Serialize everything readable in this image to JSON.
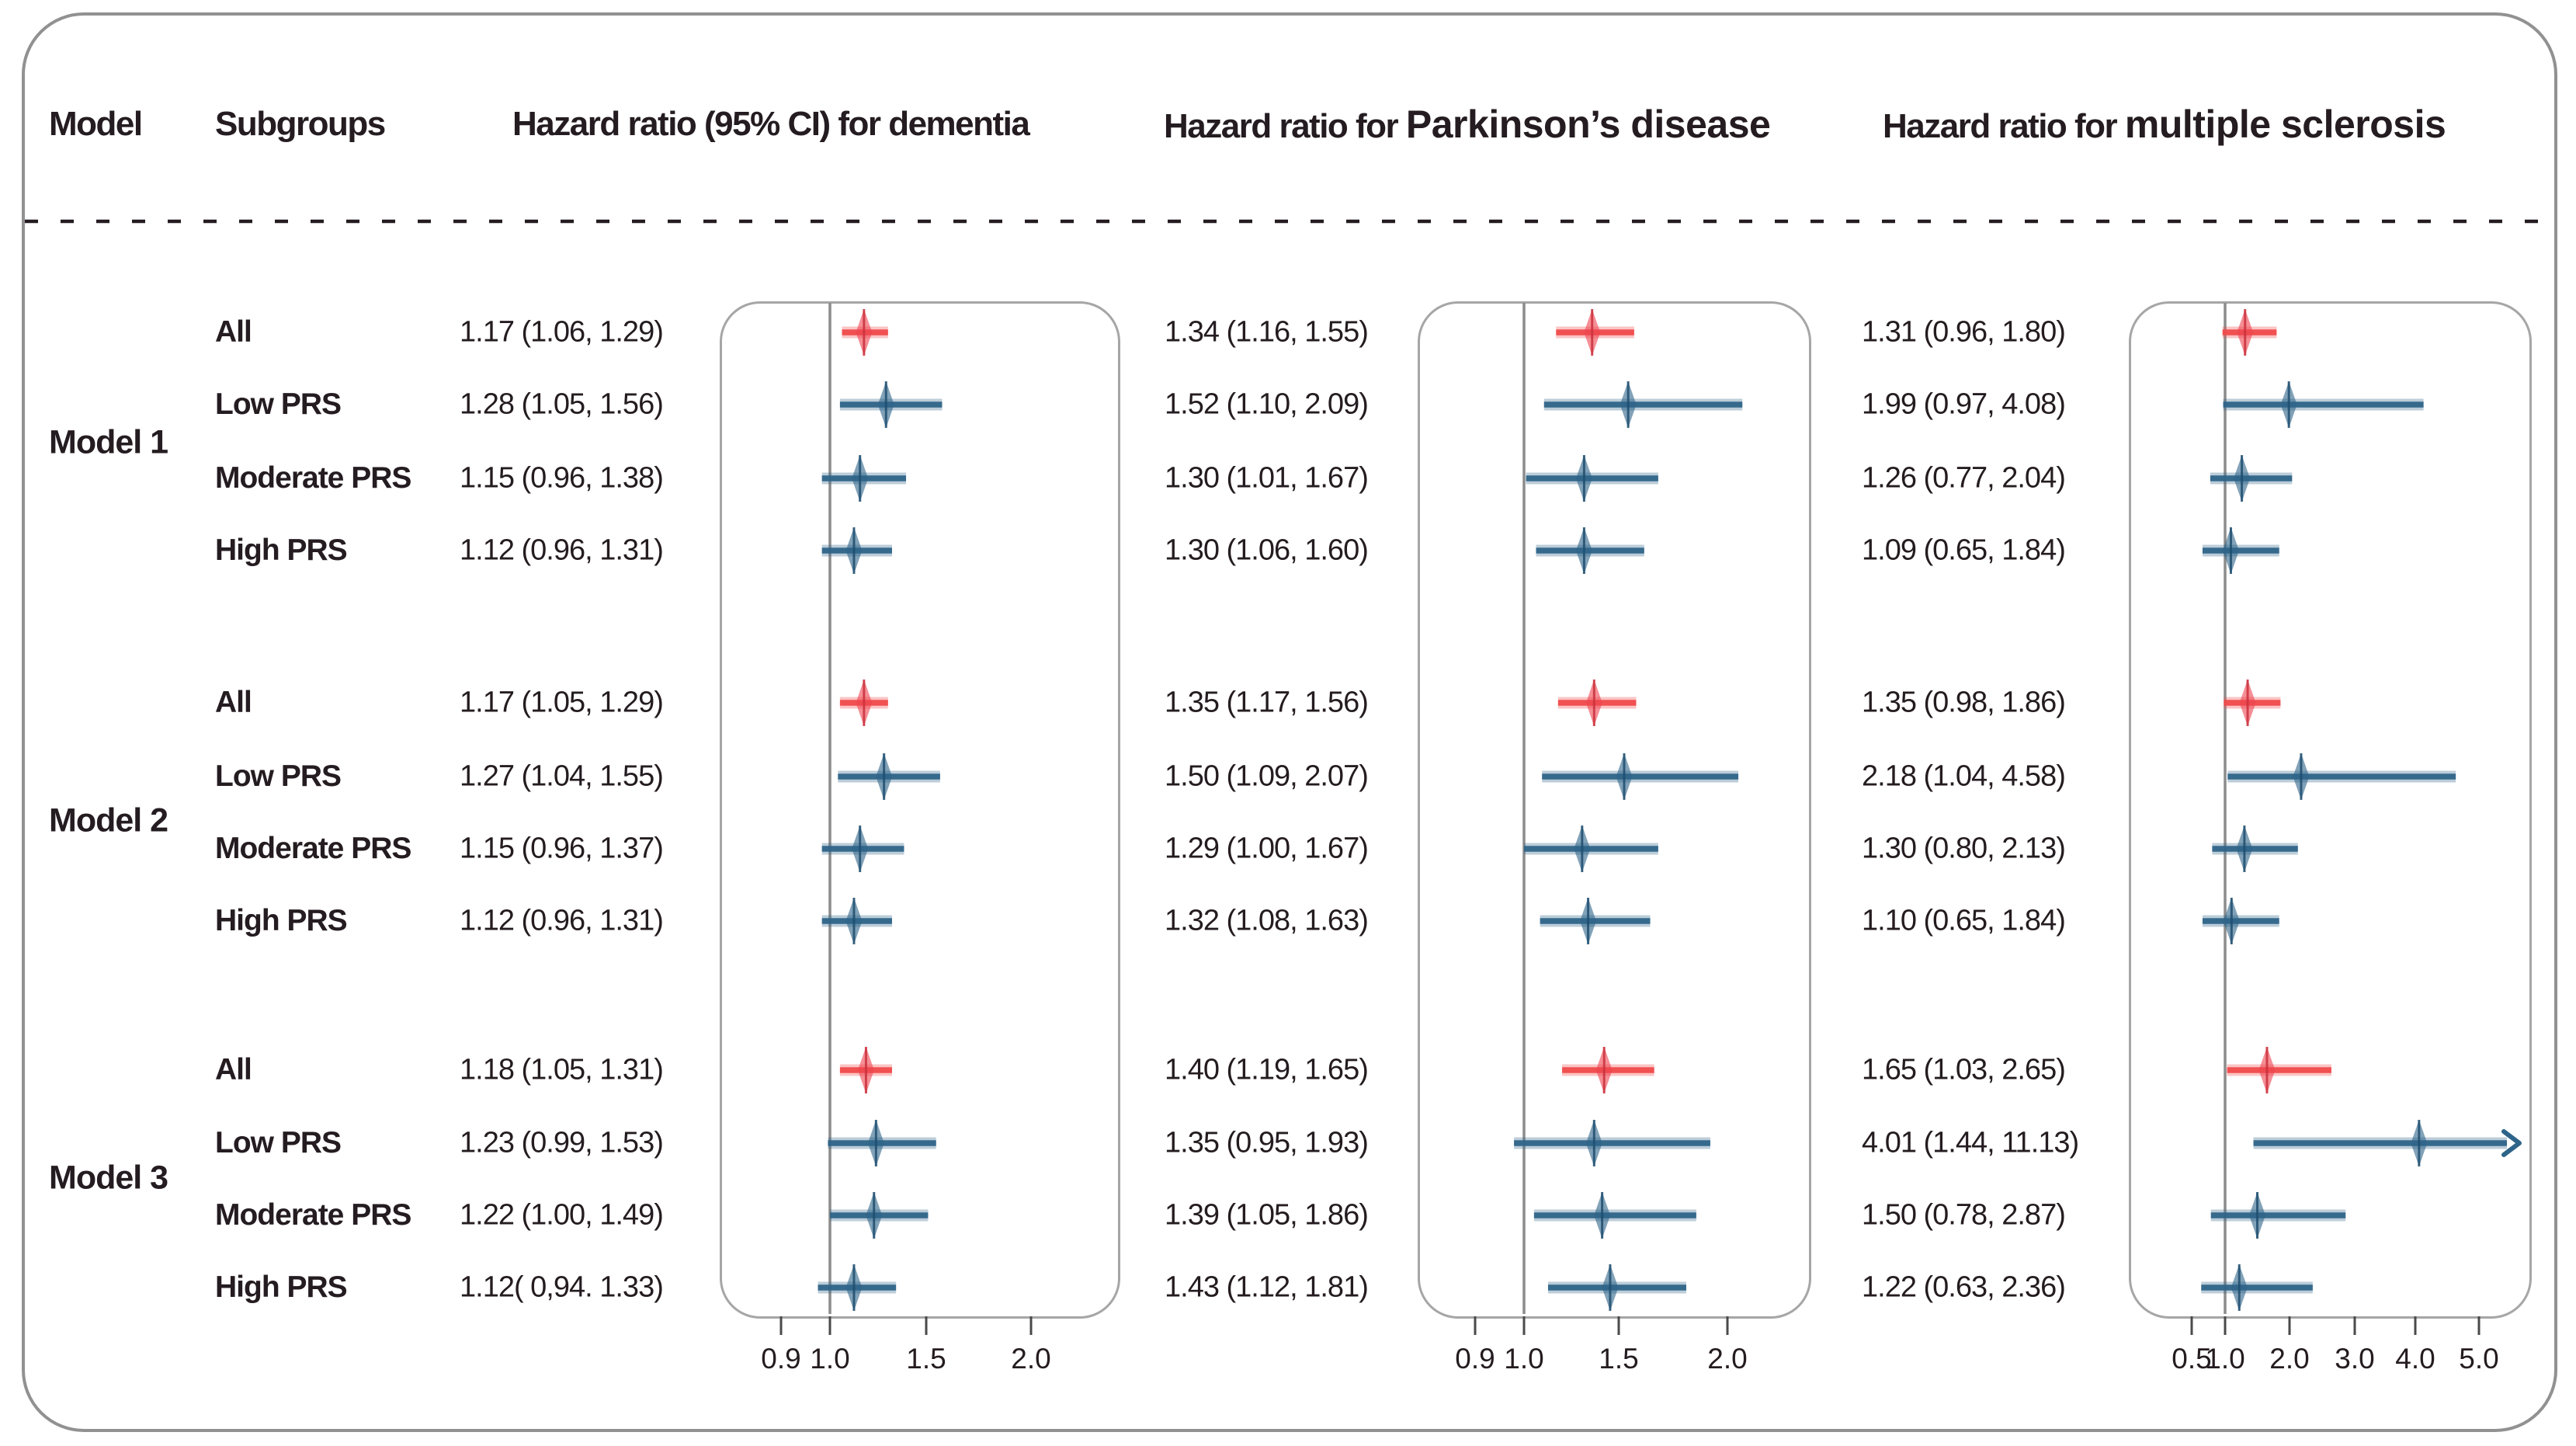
{
  "headers": {
    "model": "Model",
    "subgroups": "Subgroups",
    "dementia": "Hazard ratio (95% CI) for dementia",
    "parkinsons_prefix": "Hazard ratio for ",
    "parkinsons_emph": "Parkinson’s disease",
    "ms_prefix": "Hazard ratio for ",
    "ms_emph": "multiple sclerosis"
  },
  "colors": {
    "highlight_red": "#f04b4b",
    "highlight_red_fill": "#ee4550",
    "series_blue": "#2e6489",
    "series_blue_dark": "#1f4d6e",
    "ref_line_gray": "#8c8c8c",
    "panel_border_gray": "#a6a6a6",
    "outer_border_gray": "#919191",
    "text_color": "#241c20"
  },
  "chart_data": {
    "type": "forest",
    "outcomes": [
      {
        "id": "dementia",
        "ref_value": 1.0,
        "axis_range": [
          0.9,
          2.0
        ],
        "ticks": [
          {
            "value": 0.9,
            "label": "0.9"
          },
          {
            "value": 1.0,
            "label": "1.0"
          },
          {
            "value": 1.5,
            "label": "1.5"
          },
          {
            "value": 2.0,
            "label": "2.0"
          }
        ]
      },
      {
        "id": "parkinsons",
        "ref_value": 1.0,
        "axis_range": [
          0.9,
          2.0
        ],
        "ticks": [
          {
            "value": 0.9,
            "label": "0.9"
          },
          {
            "value": 1.0,
            "label": "1.0"
          },
          {
            "value": 1.5,
            "label": "1.5"
          },
          {
            "value": 2.0,
            "label": "2.0"
          }
        ]
      },
      {
        "id": "ms",
        "ref_value": 1.0,
        "axis_range": [
          0.5,
          5.0
        ],
        "ticks": [
          {
            "value": 0.5,
            "label": "0.5"
          },
          {
            "value": 1.0,
            "label": "1.0"
          },
          {
            "value": 2.0,
            "label": "2.0"
          },
          {
            "value": 3.0,
            "label": "3.0"
          },
          {
            "value": 4.0,
            "label": "4.0"
          },
          {
            "value": 5.0,
            "label": "5.0"
          }
        ]
      }
    ],
    "models": [
      {
        "label": "Model 1",
        "rows": [
          {
            "subgroup": "All",
            "highlight": true,
            "dementia": {
              "text": "1.17 (1.06, 1.29)",
              "est": 1.17,
              "lo": 1.06,
              "hi": 1.29
            },
            "parkinsons": {
              "text": "1.34 (1.16, 1.55)",
              "est": 1.34,
              "lo": 1.16,
              "hi": 1.55
            },
            "ms": {
              "text": "1.31 (0.96, 1.80)",
              "est": 1.31,
              "lo": 0.96,
              "hi": 1.8
            }
          },
          {
            "subgroup": "Low PRS",
            "highlight": false,
            "dementia": {
              "text": "1.28 (1.05, 1.56)",
              "est": 1.28,
              "lo": 1.05,
              "hi": 1.56
            },
            "parkinsons": {
              "text": "1.52 (1.10, 2.09)",
              "est": 1.52,
              "lo": 1.1,
              "hi": 2.09
            },
            "ms": {
              "text": "1.99 (0.97, 4.08)",
              "est": 1.99,
              "lo": 0.97,
              "hi": 4.08
            }
          },
          {
            "subgroup": "Moderate PRS",
            "highlight": false,
            "dementia": {
              "text": "1.15 (0.96, 1.38)",
              "est": 1.15,
              "lo": 0.96,
              "hi": 1.38
            },
            "parkinsons": {
              "text": "1.30 (1.01, 1.67)",
              "est": 1.3,
              "lo": 1.01,
              "hi": 1.67
            },
            "ms": {
              "text": "1.26 (0.77, 2.04)",
              "est": 1.26,
              "lo": 0.77,
              "hi": 2.04
            }
          },
          {
            "subgroup": "High PRS",
            "highlight": false,
            "dementia": {
              "text": "1.12 (0.96, 1.31)",
              "est": 1.12,
              "lo": 0.96,
              "hi": 1.31
            },
            "parkinsons": {
              "text": "1.30 (1.06, 1.60)",
              "est": 1.3,
              "lo": 1.06,
              "hi": 1.6
            },
            "ms": {
              "text": "1.09 (0.65, 1.84)",
              "est": 1.09,
              "lo": 0.65,
              "hi": 1.84
            }
          }
        ]
      },
      {
        "label": "Model 2",
        "rows": [
          {
            "subgroup": "All",
            "highlight": true,
            "dementia": {
              "text": "1.17 (1.05, 1.29)",
              "est": 1.17,
              "lo": 1.05,
              "hi": 1.29
            },
            "parkinsons": {
              "text": "1.35 (1.17, 1.56)",
              "est": 1.35,
              "lo": 1.17,
              "hi": 1.56
            },
            "ms": {
              "text": "1.35 (0.98, 1.86)",
              "est": 1.35,
              "lo": 0.98,
              "hi": 1.86
            }
          },
          {
            "subgroup": "Low PRS",
            "highlight": false,
            "dementia": {
              "text": "1.27 (1.04, 1.55)",
              "est": 1.27,
              "lo": 1.04,
              "hi": 1.55
            },
            "parkinsons": {
              "text": "1.50 (1.09, 2.07)",
              "est": 1.5,
              "lo": 1.09,
              "hi": 2.07
            },
            "ms": {
              "text": "2.18 (1.04, 4.58)",
              "est": 2.18,
              "lo": 1.04,
              "hi": 4.58
            }
          },
          {
            "subgroup": "Moderate PRS",
            "highlight": false,
            "dementia": {
              "text": "1.15 (0.96, 1.37)",
              "est": 1.15,
              "lo": 0.96,
              "hi": 1.37
            },
            "parkinsons": {
              "text": "1.29 (1.00, 1.67)",
              "est": 1.29,
              "lo": 1.0,
              "hi": 1.67
            },
            "ms": {
              "text": "1.30 (0.80, 2.13)",
              "est": 1.3,
              "lo": 0.8,
              "hi": 2.13
            }
          },
          {
            "subgroup": "High PRS",
            "highlight": false,
            "dementia": {
              "text": "1.12 (0.96, 1.31)",
              "est": 1.12,
              "lo": 0.96,
              "hi": 1.31
            },
            "parkinsons": {
              "text": "1.32 (1.08, 1.63)",
              "est": 1.32,
              "lo": 1.08,
              "hi": 1.63
            },
            "ms": {
              "text": "1.10 (0.65, 1.84)",
              "est": 1.1,
              "lo": 0.65,
              "hi": 1.84
            }
          }
        ]
      },
      {
        "label": "Model 3",
        "rows": [
          {
            "subgroup": "All",
            "highlight": true,
            "dementia": {
              "text": "1.18 (1.05, 1.31)",
              "est": 1.18,
              "lo": 1.05,
              "hi": 1.31
            },
            "parkinsons": {
              "text": "1.40 (1.19, 1.65)",
              "est": 1.4,
              "lo": 1.19,
              "hi": 1.65
            },
            "ms": {
              "text": "1.65 (1.03, 2.65)",
              "est": 1.65,
              "lo": 1.03,
              "hi": 2.65
            }
          },
          {
            "subgroup": "Low PRS",
            "highlight": false,
            "dementia": {
              "text": "1.23 (0.99, 1.53)",
              "est": 1.23,
              "lo": 0.99,
              "hi": 1.53
            },
            "parkinsons": {
              "text": "1.35 (0.95, 1.93)",
              "est": 1.35,
              "lo": 0.95,
              "hi": 1.93
            },
            "ms": {
              "text": "4.01 (1.44, 11.13)",
              "est": 4.01,
              "lo": 1.44,
              "hi": 11.13
            }
          },
          {
            "subgroup": "Moderate PRS",
            "highlight": false,
            "dementia": {
              "text": "1.22 (1.00, 1.49)",
              "est": 1.22,
              "lo": 1.0,
              "hi": 1.49
            },
            "parkinsons": {
              "text": "1.39 (1.05, 1.86)",
              "est": 1.39,
              "lo": 1.05,
              "hi": 1.86
            },
            "ms": {
              "text": "1.50 (0.78, 2.87)",
              "est": 1.5,
              "lo": 0.78,
              "hi": 2.87
            }
          },
          {
            "subgroup": "High PRS",
            "highlight": false,
            "dementia": {
              "text": "1.12( 0,94. 1.33)",
              "est": 1.12,
              "lo": 0.94,
              "hi": 1.33
            },
            "parkinsons": {
              "text": "1.43 (1.12, 1.81)",
              "est": 1.43,
              "lo": 1.12,
              "hi": 1.81
            },
            "ms": {
              "text": "1.22 (0.63, 2.36)",
              "est": 1.22,
              "lo": 0.63,
              "hi": 2.36
            }
          }
        ]
      }
    ]
  }
}
